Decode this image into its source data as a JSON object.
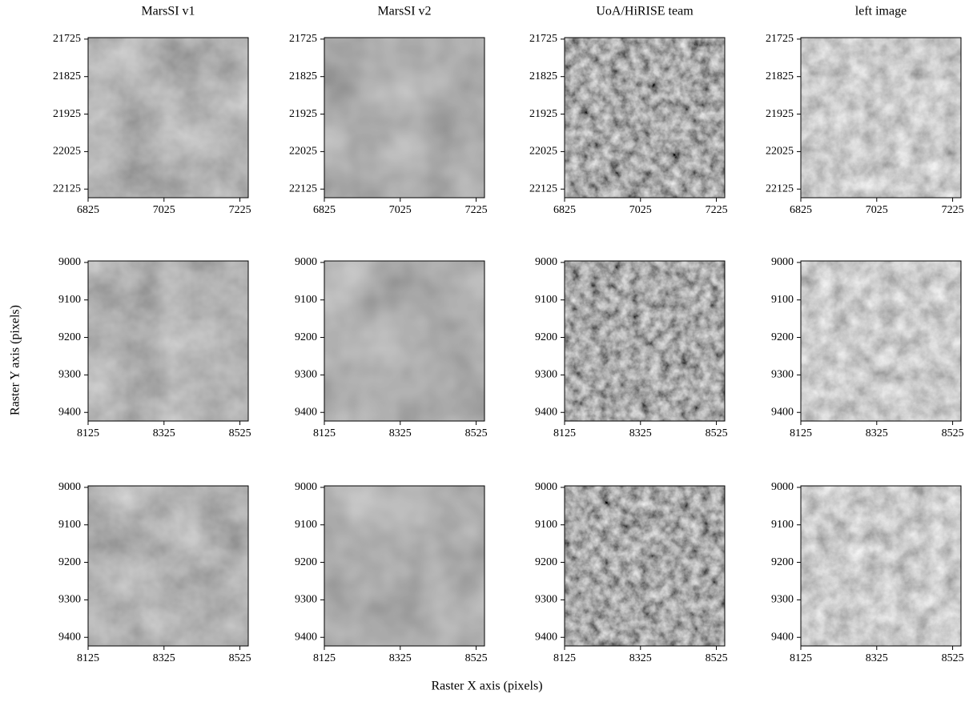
{
  "figure": {
    "xlabel": "Raster X axis (pixels)",
    "ylabel": "Raster Y axis (pixels)"
  },
  "chart_data": [
    {
      "type": "image",
      "title": "MarsSI v1",
      "xlim": [
        6825,
        7247
      ],
      "ylim": [
        22148,
        21721
      ],
      "xticks": [
        6825,
        7025,
        7225
      ],
      "yticks": [
        21725,
        21825,
        21925,
        22025,
        22125
      ]
    },
    {
      "type": "image",
      "title": "MarsSI v2",
      "xlim": [
        6825,
        7247
      ],
      "ylim": [
        22148,
        21721
      ],
      "xticks": [
        6825,
        7025,
        7225
      ],
      "yticks": [
        21725,
        21825,
        21925,
        22025,
        22125
      ]
    },
    {
      "type": "image",
      "title": "UoA/HiRISE team",
      "xlim": [
        6825,
        7247
      ],
      "ylim": [
        22148,
        21721
      ],
      "xticks": [
        6825,
        7025,
        7225
      ],
      "yticks": [
        21725,
        21825,
        21925,
        22025,
        22125
      ]
    },
    {
      "type": "image",
      "title": "left image",
      "xlim": [
        6825,
        7247
      ],
      "ylim": [
        22148,
        21721
      ],
      "xticks": [
        6825,
        7025,
        7225
      ],
      "yticks": [
        21725,
        21825,
        21925,
        22025,
        22125
      ]
    },
    {
      "type": "image",
      "xlim": [
        8125,
        8547
      ],
      "ylim": [
        9423,
        8996
      ],
      "xticks": [
        8125,
        8325,
        8525
      ],
      "yticks": [
        9000,
        9100,
        9200,
        9300,
        9400
      ]
    },
    {
      "type": "image",
      "xlim": [
        8125,
        8547
      ],
      "ylim": [
        9423,
        8996
      ],
      "xticks": [
        8125,
        8325,
        8525
      ],
      "yticks": [
        9000,
        9100,
        9200,
        9300,
        9400
      ]
    },
    {
      "type": "image",
      "xlim": [
        8125,
        8547
      ],
      "ylim": [
        9423,
        8996
      ],
      "xticks": [
        8125,
        8325,
        8525
      ],
      "yticks": [
        9000,
        9100,
        9200,
        9300,
        9400
      ]
    },
    {
      "type": "image",
      "xlim": [
        8125,
        8547
      ],
      "ylim": [
        9423,
        8996
      ],
      "xticks": [
        8125,
        8325,
        8525
      ],
      "yticks": [
        9000,
        9100,
        9200,
        9300,
        9400
      ]
    },
    {
      "type": "image",
      "xlim": [
        8125,
        8547
      ],
      "ylim": [
        9423,
        8996
      ],
      "xticks": [
        8125,
        8325,
        8525
      ],
      "yticks": [
        9000,
        9100,
        9200,
        9300,
        9400
      ]
    },
    {
      "type": "image",
      "xlim": [
        8125,
        8547
      ],
      "ylim": [
        9423,
        8996
      ],
      "xticks": [
        8125,
        8325,
        8525
      ],
      "yticks": [
        9000,
        9100,
        9200,
        9300,
        9400
      ]
    },
    {
      "type": "image",
      "xlim": [
        8125,
        8547
      ],
      "ylim": [
        9423,
        8996
      ],
      "xticks": [
        8125,
        8325,
        8525
      ],
      "yticks": [
        9000,
        9100,
        9200,
        9300,
        9400
      ]
    },
    {
      "type": "image",
      "xlim": [
        8125,
        8547
      ],
      "ylim": [
        9423,
        8996
      ],
      "xticks": [
        8125,
        8325,
        8525
      ],
      "yticks": [
        9000,
        9100,
        9200,
        9300,
        9400
      ]
    }
  ]
}
